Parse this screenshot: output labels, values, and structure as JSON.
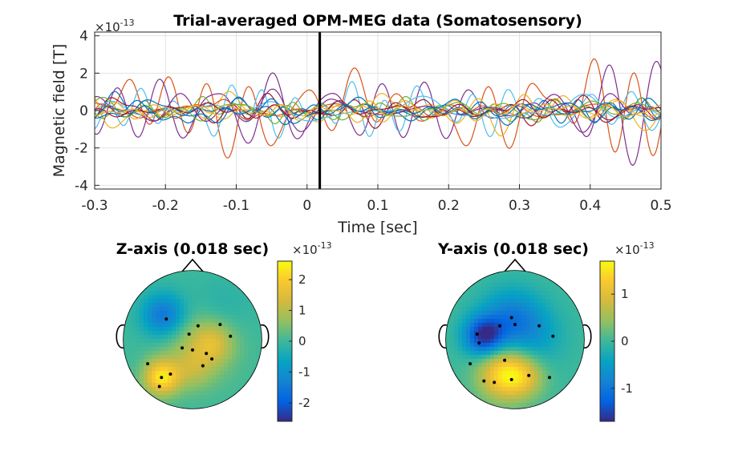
{
  "chart_data": [
    {
      "type": "line",
      "title": "Trial-averaged OPM-MEG data (Somatosensory)",
      "xlabel": "Time [sec]",
      "ylabel": "Magnetic field [T]",
      "y_exponent_prefix": "×10",
      "y_exponent": "-13",
      "xlim": [
        -0.3,
        0.5
      ],
      "ylim": [
        -4.2,
        4.2
      ],
      "xticks": [
        -0.3,
        -0.2,
        -0.1,
        0,
        0.1,
        0.2,
        0.3,
        0.4,
        0.5
      ],
      "xtick_labels": [
        "-0.3",
        "-0.2",
        "-0.1",
        "0",
        "0.1",
        "0.2",
        "0.3",
        "0.4",
        "0.5"
      ],
      "yticks": [
        -4,
        -2,
        0,
        2,
        4
      ],
      "ytick_labels": [
        "-4",
        "-2",
        "0",
        "2",
        "4"
      ],
      "grid": true,
      "cursor_time": 0.018,
      "series": [
        {
          "color": "#D95319",
          "amp": 2.4,
          "seed": 1
        },
        {
          "color": "#7E2F8E",
          "amp": 2.2,
          "seed": 2
        },
        {
          "color": "#4DBEEE",
          "amp": 1.3,
          "seed": 3
        },
        {
          "color": "#EDB120",
          "amp": 0.9,
          "seed": 4
        },
        {
          "color": "#0072BD",
          "amp": 0.8,
          "seed": 5
        },
        {
          "color": "#77AC30",
          "amp": 0.6,
          "seed": 6
        },
        {
          "color": "#A2142F",
          "amp": 0.7,
          "seed": 7
        },
        {
          "color": "#D95319",
          "amp": 0.5,
          "seed": 8
        },
        {
          "color": "#7E2F8E",
          "amp": 0.9,
          "seed": 9
        },
        {
          "color": "#4DBEEE",
          "amp": 0.6,
          "seed": 10
        },
        {
          "color": "#EDB120",
          "amp": 0.5,
          "seed": 11
        },
        {
          "color": "#0072BD",
          "amp": 0.6,
          "seed": 12
        },
        {
          "color": "#77AC30",
          "amp": 0.5,
          "seed": 13
        },
        {
          "color": "#A2142F",
          "amp": 0.4,
          "seed": 14
        },
        {
          "color": "#0072BD",
          "amp": 0.4,
          "seed": 15
        },
        {
          "color": "#EDB120",
          "amp": 0.4,
          "seed": 16
        }
      ]
    },
    {
      "type": "heatmap",
      "title": "Z-axis (0.018 sec)",
      "colorbar_exponent_prefix": "×10",
      "colorbar_exponent": "-13",
      "clim": [
        -2.6,
        2.6
      ],
      "colorbar_ticks": [
        -2,
        -1,
        0,
        1,
        2
      ],
      "colorbar_tick_labels": [
        "-2",
        "-1",
        "0",
        "1",
        "2"
      ],
      "sources": [
        {
          "u": -0.42,
          "v": -0.35,
          "amp": -1.6,
          "w": 0.22
        },
        {
          "u": -0.45,
          "v": 0.55,
          "amp": 2.3,
          "w": 0.18
        },
        {
          "u": 0.1,
          "v": 0.1,
          "amp": 0.9,
          "w": 0.35
        },
        {
          "u": 0.3,
          "v": 0.05,
          "amp": 0.9,
          "w": 0.2
        },
        {
          "u": 0.0,
          "v": 0.45,
          "amp": 0.6,
          "w": 0.2
        },
        {
          "u": 0.4,
          "v": -0.45,
          "amp": -0.3,
          "w": 0.3
        }
      ],
      "sensors": [
        [
          -0.38,
          -0.3
        ],
        [
          -0.05,
          -0.08
        ],
        [
          0.08,
          -0.2
        ],
        [
          0.4,
          -0.22
        ],
        [
          0.55,
          -0.05
        ],
        [
          -0.15,
          0.12
        ],
        [
          0.0,
          0.15
        ],
        [
          0.2,
          0.2
        ],
        [
          0.28,
          0.28
        ],
        [
          -0.65,
          0.35
        ],
        [
          -0.45,
          0.55
        ],
        [
          -0.48,
          0.68
        ],
        [
          -0.32,
          0.5
        ],
        [
          0.15,
          0.38
        ]
      ]
    },
    {
      "type": "heatmap",
      "title": "Y-axis (0.018 sec)",
      "colorbar_exponent_prefix": "×10",
      "colorbar_exponent": "-13",
      "clim": [
        -1.7,
        1.7
      ],
      "colorbar_ticks": [
        -1,
        0,
        1
      ],
      "colorbar_tick_labels": [
        "-1",
        "0",
        "1"
      ],
      "sources": [
        {
          "u": -0.45,
          "v": -0.05,
          "amp": -1.6,
          "w": 0.2
        },
        {
          "u": -0.05,
          "v": -0.3,
          "amp": -0.9,
          "w": 0.3
        },
        {
          "u": 0.3,
          "v": -0.05,
          "amp": -0.4,
          "w": 0.3
        },
        {
          "u": -0.15,
          "v": 0.5,
          "amp": 1.5,
          "w": 0.26
        },
        {
          "u": 0.15,
          "v": 0.55,
          "amp": 0.6,
          "w": 0.2
        }
      ],
      "sensors": [
        [
          -0.05,
          -0.32
        ],
        [
          0.35,
          -0.2
        ],
        [
          0.55,
          -0.05
        ],
        [
          -0.55,
          -0.08
        ],
        [
          -0.22,
          -0.2
        ],
        [
          0.0,
          -0.22
        ],
        [
          -0.52,
          0.05
        ],
        [
          -0.65,
          0.35
        ],
        [
          -0.15,
          0.3
        ],
        [
          -0.45,
          0.6
        ],
        [
          -0.3,
          0.62
        ],
        [
          -0.05,
          0.58
        ],
        [
          0.2,
          0.52
        ],
        [
          0.5,
          0.55
        ]
      ]
    }
  ]
}
